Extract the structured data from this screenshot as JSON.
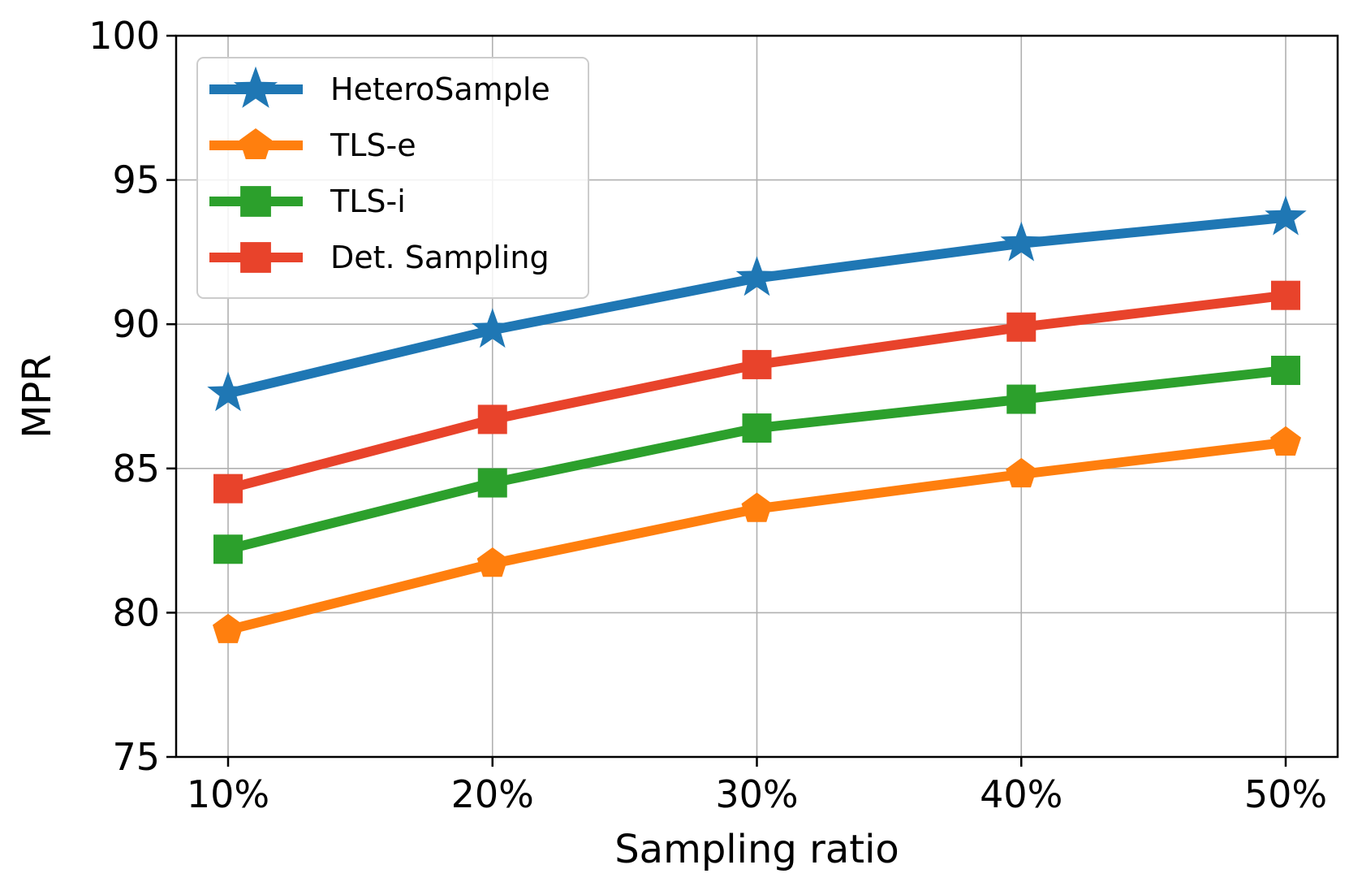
{
  "chart_data": {
    "type": "line",
    "x": [
      "10%",
      "20%",
      "30%",
      "40%",
      "50%"
    ],
    "xlabel": "Sampling ratio",
    "ylabel": "MPR",
    "ylim": [
      75,
      100
    ],
    "yticks": [
      "75",
      "80",
      "85",
      "90",
      "95",
      "100"
    ],
    "grid": true,
    "legend_position": "top-left",
    "series": [
      {
        "name": "HeteroSample",
        "marker": "star",
        "color": "#1f77b4",
        "values": [
          87.6,
          89.8,
          91.6,
          92.8,
          93.7
        ]
      },
      {
        "name": "TLS-e",
        "marker": "pentagon",
        "color": "#ff7f0e",
        "values": [
          79.4,
          81.7,
          83.6,
          84.8,
          85.9
        ]
      },
      {
        "name": "TLS-i",
        "marker": "square",
        "color": "#2ca02c",
        "values": [
          82.2,
          84.5,
          86.4,
          87.4,
          88.4
        ]
      },
      {
        "name": "Det. Sampling",
        "marker": "square",
        "color": "#e8432b",
        "values": [
          84.3,
          86.7,
          88.6,
          89.9,
          91.0
        ]
      }
    ]
  }
}
